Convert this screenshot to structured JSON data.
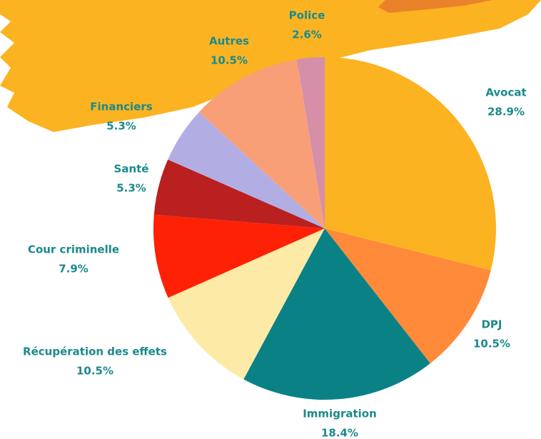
{
  "chart_data": {
    "type": "pie",
    "categories": [
      "Avocat",
      "DPJ",
      "Immigration",
      "Récupération des effets",
      "Cour criminelle",
      "Santé",
      "Financiers",
      "Autres",
      "Police"
    ],
    "values": [
      28.9,
      10.5,
      18.4,
      10.5,
      7.9,
      5.3,
      5.3,
      10.5,
      2.6
    ],
    "value_labels": [
      "28.9%",
      "10.5%",
      "18.4%",
      "10.5%",
      "7.9%",
      "5.3%",
      "5.3%",
      "10.5%",
      "2.6%"
    ],
    "colors": [
      "#fbb321",
      "#fe8a3a",
      "#0a8285",
      "#feeaa7",
      "#ff2105",
      "#b9201f",
      "#b2aee4",
      "#f99f78",
      "#d68fa9"
    ]
  }
}
